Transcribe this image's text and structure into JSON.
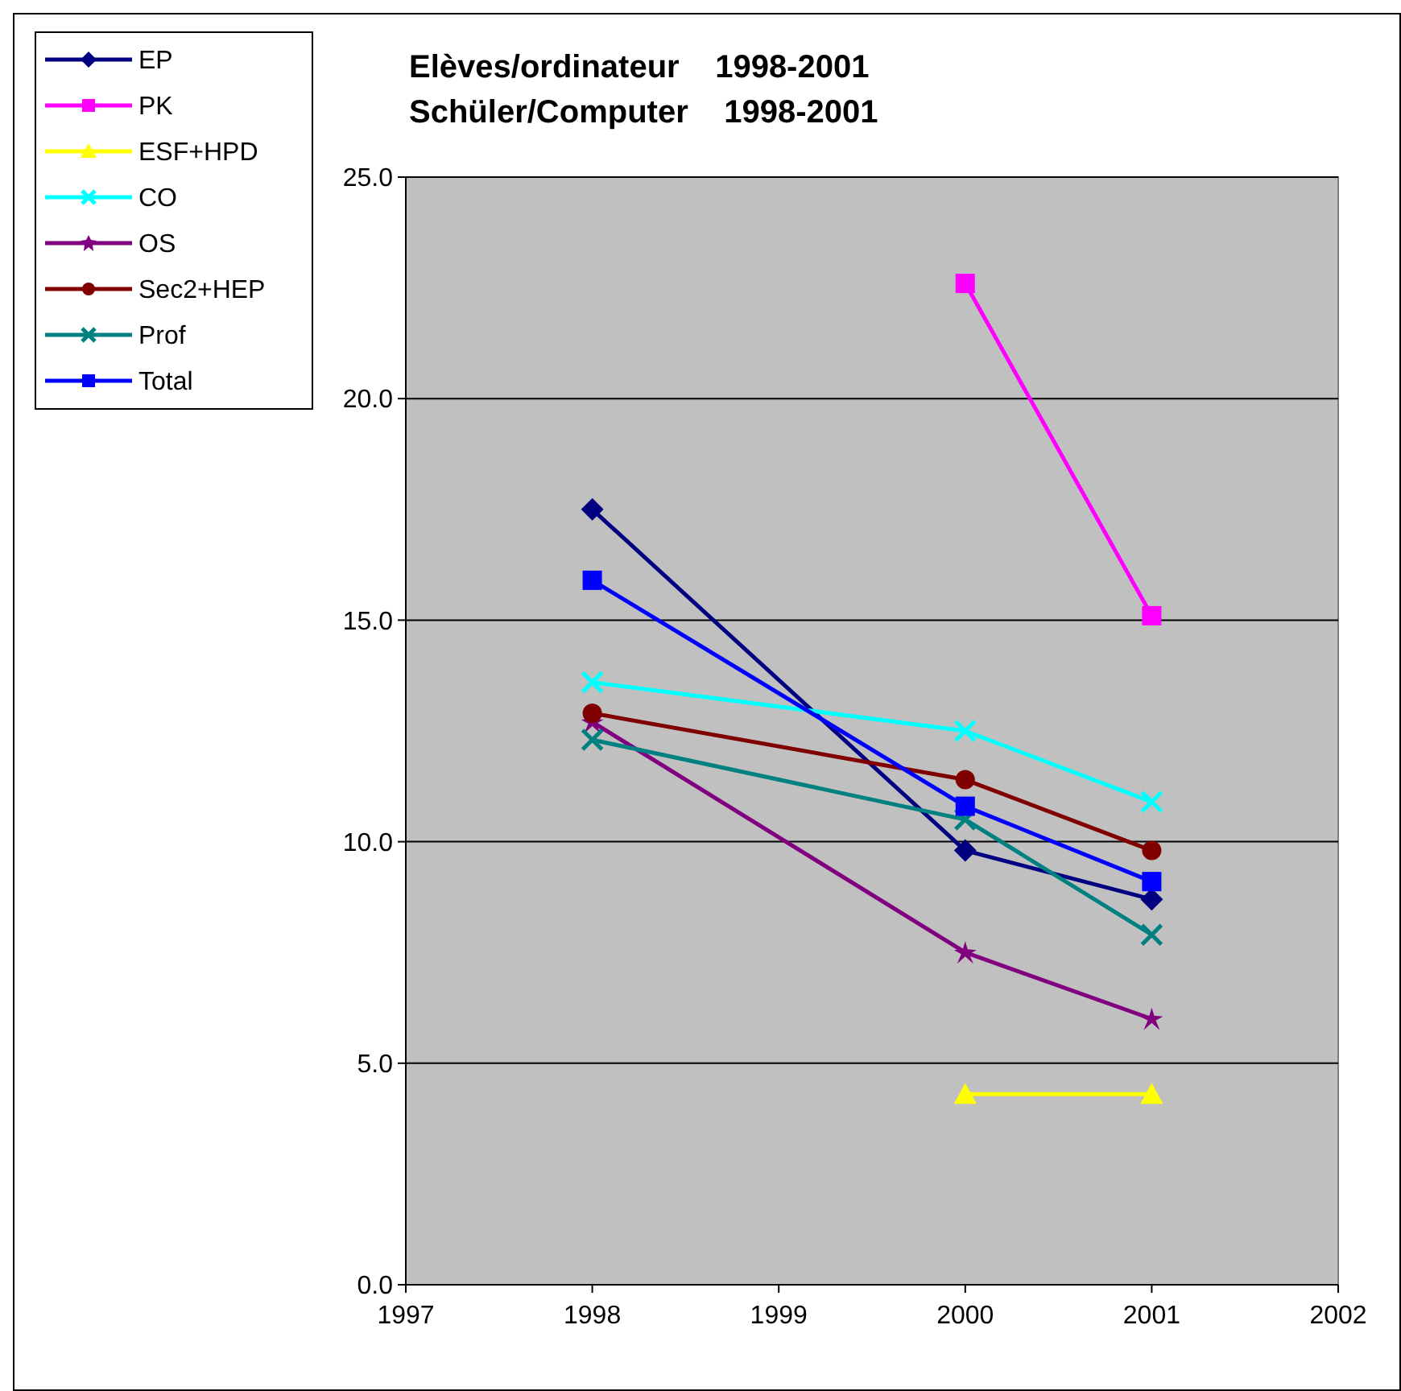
{
  "chart_data": {
    "type": "line",
    "title": "Elèves/ordinateur    1998-2001",
    "subtitle": "Schüler/Computer    1998-2001",
    "x": [
      1998,
      2000,
      2001
    ],
    "xlim": [
      1997,
      2002
    ],
    "xticks": [
      1997,
      1998,
      1999,
      2000,
      2001,
      2002
    ],
    "ylim": [
      0,
      25
    ],
    "yticks": [
      {
        "value": 0,
        "label": "0.0"
      },
      {
        "value": 5,
        "label": "5.0"
      },
      {
        "value": 10,
        "label": "10.0"
      },
      {
        "value": 15,
        "label": "15.0"
      },
      {
        "value": 20,
        "label": "20.0"
      },
      {
        "value": 25,
        "label": "25.0"
      }
    ],
    "grid": "y",
    "legend": "top left",
    "line_style": "solid",
    "series": [
      {
        "name": "EP",
        "color": "#000080",
        "marker": "diamond",
        "values": [
          17.5,
          9.8,
          8.7
        ]
      },
      {
        "name": "PK",
        "color": "#ff00ff",
        "marker": "square",
        "values": [
          null,
          22.6,
          15.1
        ]
      },
      {
        "name": "ESF+HPD",
        "color": "#ffff00",
        "marker": "triangle",
        "values": [
          null,
          4.3,
          4.3
        ]
      },
      {
        "name": "CO",
        "color": "#00ffff",
        "marker": "cross",
        "values": [
          13.6,
          12.5,
          10.9
        ]
      },
      {
        "name": "OS",
        "color": "#800080",
        "marker": "star",
        "values": [
          12.7,
          7.5,
          6.0
        ]
      },
      {
        "name": "Sec2+HEP",
        "color": "#800000",
        "marker": "circle",
        "values": [
          12.9,
          11.4,
          9.8
        ]
      },
      {
        "name": "Prof",
        "color": "#008080",
        "marker": "cross",
        "values": [
          12.3,
          10.5,
          7.9
        ]
      },
      {
        "name": "Total",
        "color": "#0000ff",
        "marker": "square",
        "values": [
          15.9,
          10.8,
          9.1
        ]
      }
    ]
  }
}
